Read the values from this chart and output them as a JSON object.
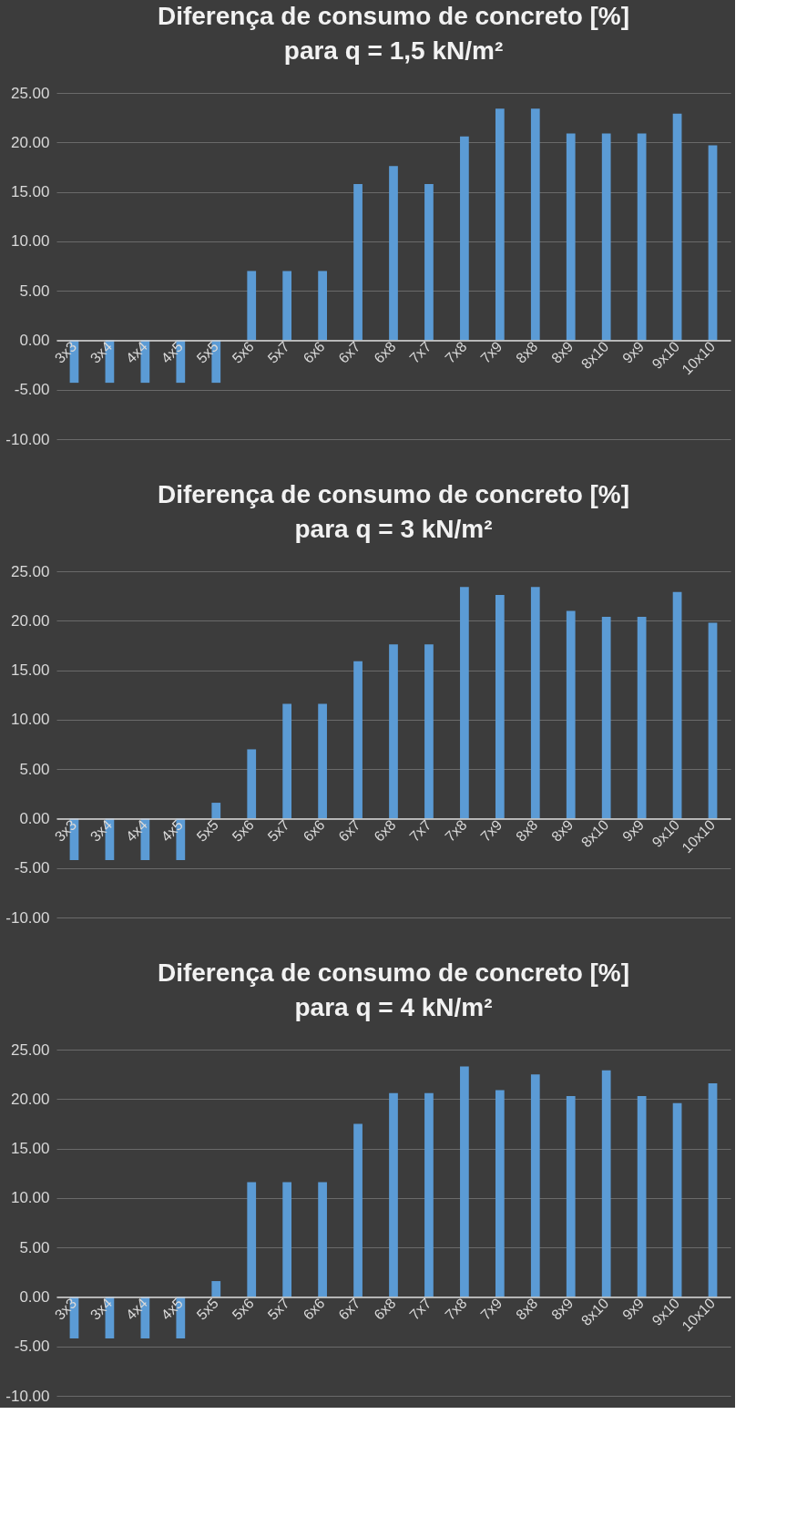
{
  "chart_data": [
    {
      "type": "bar",
      "title": "Diferença de consumo de concreto [%]\npara q = 1,5 kN/m²",
      "categories": [
        "3x3",
        "3x4",
        "4x4",
        "4x5",
        "5x5",
        "5x6",
        "5x7",
        "6x6",
        "6x7",
        "6x8",
        "7x7",
        "7x8",
        "7x9",
        "8x8",
        "8x9",
        "8x10",
        "9x9",
        "9x10",
        "10x10"
      ],
      "values": [
        -4.3,
        -4.3,
        -4.3,
        -4.3,
        -4.3,
        7.0,
        7.0,
        7.0,
        15.8,
        17.6,
        15.8,
        20.6,
        23.4,
        23.4,
        20.9,
        20.9,
        20.9,
        22.9,
        19.7
      ],
      "color": "#5b9bd5",
      "ylim": [
        -10,
        25
      ],
      "yticks": [
        {
          "value": -10,
          "label": "-10.00"
        },
        {
          "value": -5,
          "label": "-5.00"
        },
        {
          "value": 0,
          "label": "0.00"
        },
        {
          "value": 5,
          "label": "5.00"
        },
        {
          "value": 10,
          "label": "10.00"
        },
        {
          "value": 15,
          "label": "15.00"
        },
        {
          "value": 20,
          "label": "20.00"
        },
        {
          "value": 25,
          "label": "25.00"
        }
      ],
      "grid": "y"
    },
    {
      "type": "bar",
      "title": "Diferença de consumo de concreto [%]\npara q = 3 kN/m²",
      "categories": [
        "3x3",
        "3x4",
        "4x4",
        "4x5",
        "5x5",
        "5x6",
        "5x7",
        "6x6",
        "6x7",
        "6x8",
        "7x7",
        "7x8",
        "7x9",
        "8x8",
        "8x9",
        "8x10",
        "9x9",
        "9x10",
        "10x10"
      ],
      "values": [
        -4.2,
        -4.2,
        -4.2,
        -4.2,
        1.6,
        7.0,
        11.6,
        11.6,
        15.9,
        17.6,
        17.6,
        23.4,
        22.6,
        23.4,
        21.0,
        20.4,
        20.4,
        22.9,
        19.8
      ],
      "color": "#5b9bd5",
      "ylim": [
        -10,
        25
      ],
      "yticks": [
        {
          "value": -10,
          "label": "-10.00"
        },
        {
          "value": -5,
          "label": "-5.00"
        },
        {
          "value": 0,
          "label": "0.00"
        },
        {
          "value": 5,
          "label": "5.00"
        },
        {
          "value": 10,
          "label": "10.00"
        },
        {
          "value": 15,
          "label": "15.00"
        },
        {
          "value": 20,
          "label": "20.00"
        },
        {
          "value": 25,
          "label": "25.00"
        }
      ],
      "grid": "y"
    },
    {
      "type": "bar",
      "title": "Diferença de consumo de concreto [%]\npara q = 4 kN/m²",
      "categories": [
        "3x3",
        "3x4",
        "4x4",
        "4x5",
        "5x5",
        "5x6",
        "5x7",
        "6x6",
        "6x7",
        "6x8",
        "7x7",
        "7x8",
        "7x9",
        "8x8",
        "8x9",
        "8x10",
        "9x9",
        "9x10",
        "10x10"
      ],
      "values": [
        -4.2,
        -4.2,
        -4.2,
        -4.2,
        1.6,
        11.6,
        11.6,
        11.6,
        17.5,
        20.6,
        20.6,
        23.3,
        20.9,
        22.5,
        20.3,
        22.9,
        20.3,
        19.6,
        21.6
      ],
      "color": "#5b9bd5",
      "ylim": [
        -10,
        25
      ],
      "yticks": [
        {
          "value": -10,
          "label": "-10.00"
        },
        {
          "value": -5,
          "label": "-5.00"
        },
        {
          "value": 0,
          "label": "0.00"
        },
        {
          "value": 5,
          "label": "5.00"
        },
        {
          "value": 10,
          "label": "10.00"
        },
        {
          "value": 15,
          "label": "15.00"
        },
        {
          "value": 20,
          "label": "20.00"
        },
        {
          "value": 25,
          "label": "25.00"
        }
      ],
      "grid": "y"
    }
  ]
}
